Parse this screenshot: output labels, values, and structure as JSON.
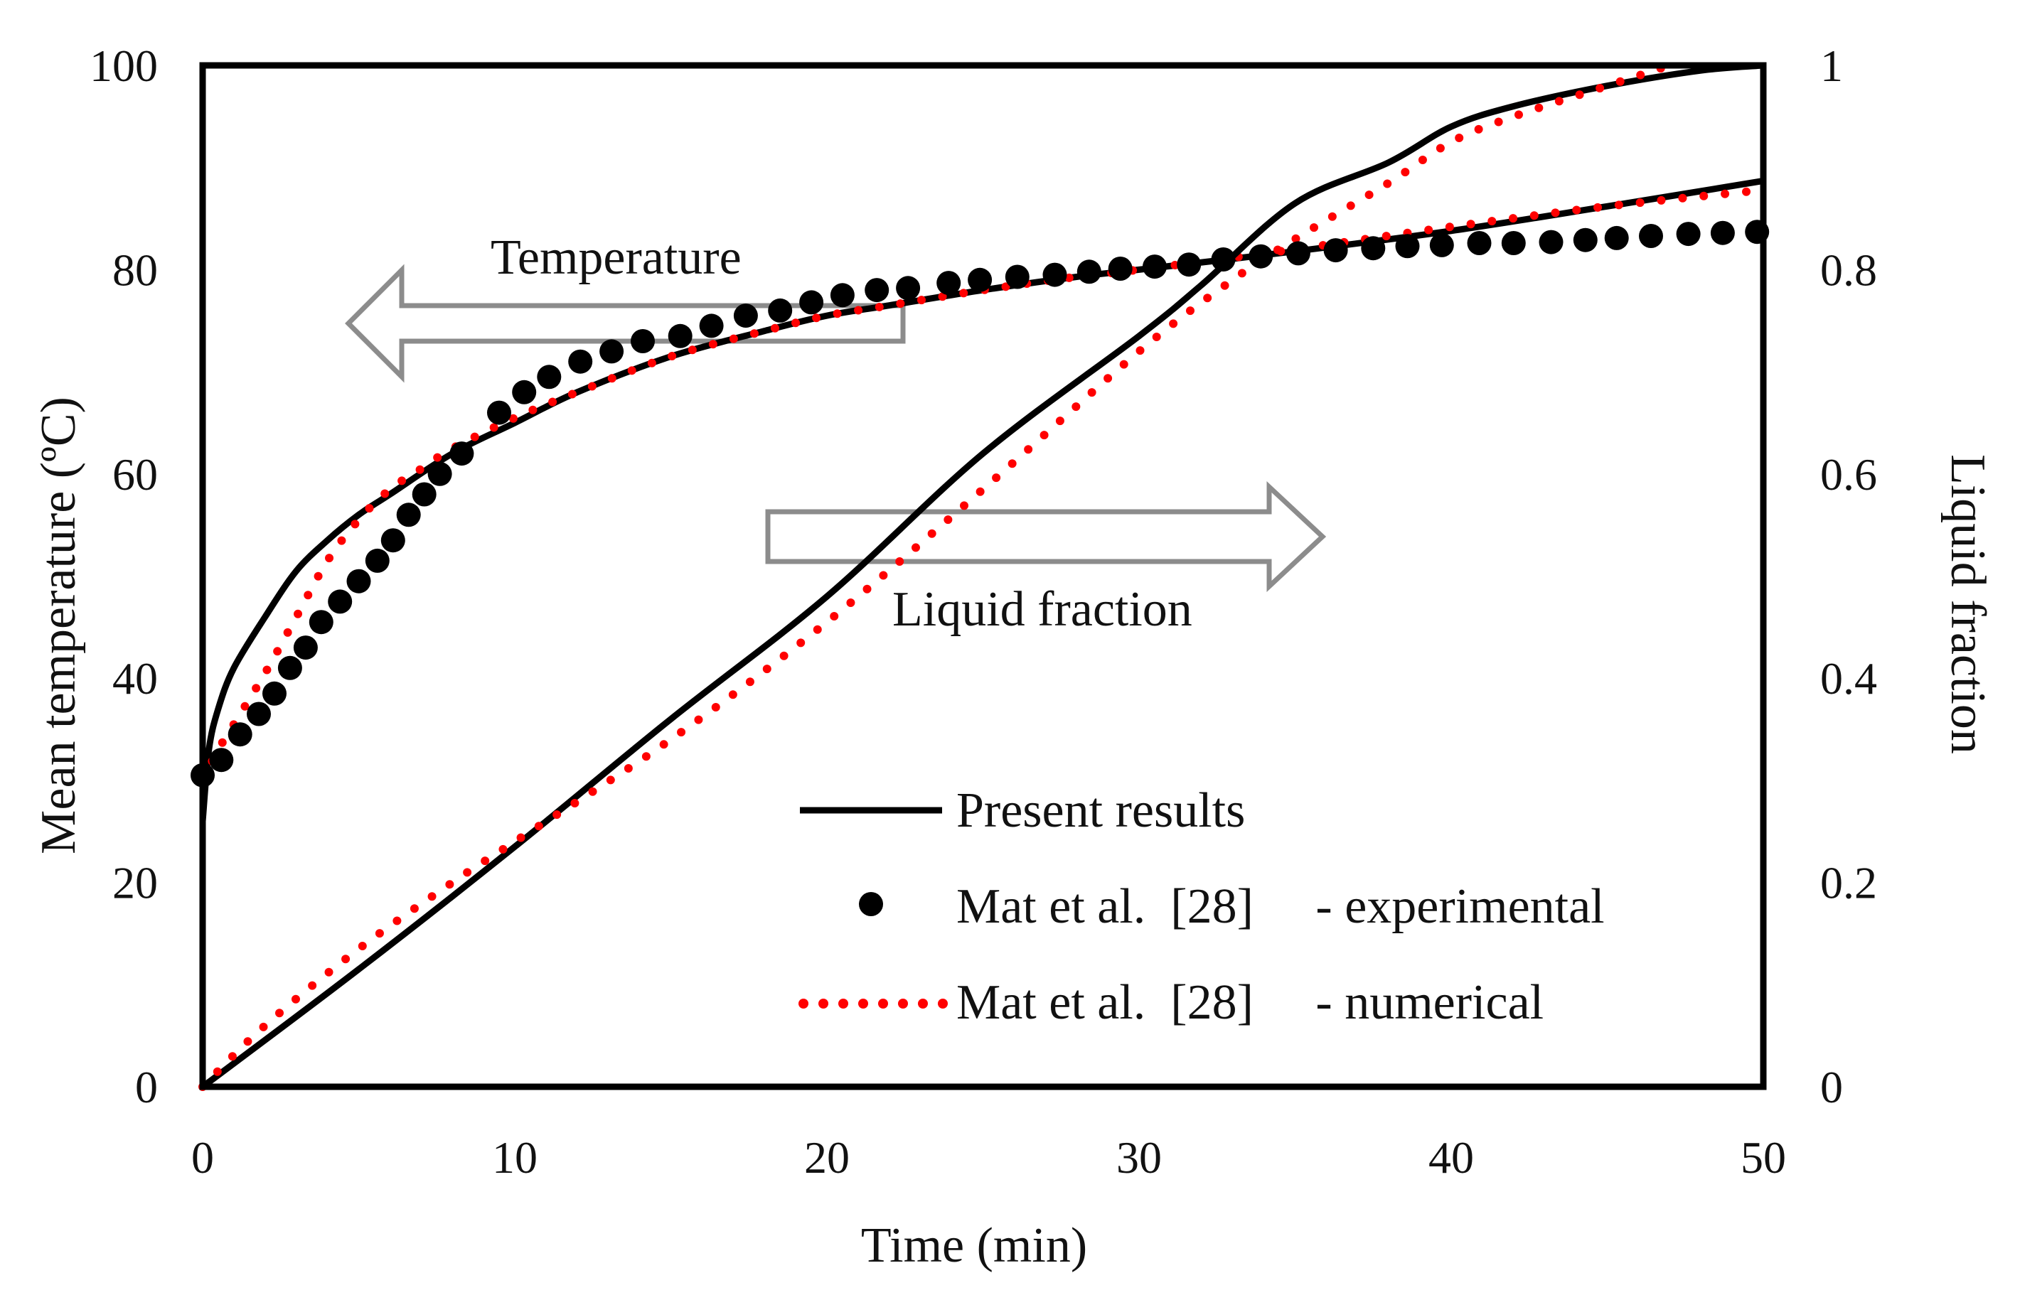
{
  "chart_data": {
    "type": "line",
    "xlabel": "Time (min)",
    "ylabel_left": "Mean temperature (ºC)",
    "ylabel_right": "Liquid fraction",
    "xlim": [
      0,
      50
    ],
    "ylim_left": [
      0,
      100
    ],
    "ylim_right": [
      0,
      1
    ],
    "x_ticks": [
      "0",
      "10",
      "20",
      "30",
      "40",
      "50"
    ],
    "y_left_ticks": [
      "0",
      "20",
      "40",
      "60",
      "80",
      "100"
    ],
    "y_right_ticks": [
      "0",
      "0.2",
      "0.4",
      "0.6",
      "0.8",
      "1"
    ],
    "grid": false,
    "legend_position": "bottom-right inside",
    "legend": [
      {
        "label": "Present results",
        "style": "solid",
        "color": "#000000"
      },
      {
        "label": "Mat et al.  [28]     - experimental",
        "style": "dots",
        "color": "#000000"
      },
      {
        "label": "Mat et al.  [28]     - numerical",
        "style": "dotted",
        "color": "#ff0000"
      }
    ],
    "annotations": [
      {
        "text": "Temperature",
        "arrow": "left"
      },
      {
        "text": "Liquid fraction",
        "arrow": "right"
      }
    ],
    "series": [
      {
        "group": "Mean temperature",
        "axis": "left",
        "source": "Present results",
        "style": "solid",
        "color": "#000000",
        "x": [
          0,
          0.2,
          0.5,
          1,
          2,
          3,
          4,
          5,
          6,
          8,
          10,
          12,
          15,
          18,
          20,
          22,
          25,
          28,
          30,
          35,
          40,
          45,
          50
        ],
        "y": [
          26,
          33,
          37,
          41,
          46,
          50.5,
          53.5,
          56,
          58,
          62,
          65,
          68,
          71.5,
          74,
          75.5,
          76.5,
          78,
          79.3,
          80,
          81.8,
          83.8,
          86.2,
          88.7
        ]
      },
      {
        "group": "Mean temperature",
        "axis": "left",
        "source": "Mat et al. [28] - numerical",
        "style": "dotted",
        "color": "#ff0000",
        "x": [
          0,
          0.5,
          1,
          2,
          3,
          4,
          5,
          6,
          7,
          8,
          10,
          12,
          15,
          18,
          20,
          22,
          25,
          28,
          30,
          35,
          40,
          45,
          50
        ],
        "y": [
          30,
          33,
          35.5,
          40.5,
          46,
          51.5,
          55.5,
          58.5,
          60.5,
          62.5,
          65.5,
          68,
          71.5,
          74,
          75.5,
          76.5,
          78,
          79.3,
          80,
          82,
          84.2,
          86.2,
          87.8
        ]
      },
      {
        "group": "Mean temperature",
        "axis": "left",
        "source": "Mat et al. [28] - experimental",
        "style": "markers",
        "color": "#000000",
        "x": [
          0,
          0.6,
          1.2,
          1.8,
          2.3,
          2.8,
          3.3,
          3.8,
          4.4,
          5,
          5.6,
          6.1,
          6.6,
          7.1,
          7.6,
          8.3,
          9.5,
          10.3,
          11.1,
          12.1,
          13.1,
          14.1,
          15.3,
          16.3,
          17.4,
          18.5,
          19.5,
          20.5,
          21.6,
          22.6,
          23.9,
          24.9,
          26.1,
          27.3,
          28.4,
          29.4,
          30.5,
          31.6,
          32.7,
          33.9,
          35.1,
          36.3,
          37.5,
          38.6,
          39.7,
          40.9,
          42,
          43.2,
          44.3,
          45.3,
          46.4,
          47.6,
          48.7,
          49.8
        ],
        "y": [
          30.5,
          32,
          34.5,
          36.5,
          38.5,
          41,
          43,
          45.5,
          47.5,
          49.5,
          51.5,
          53.5,
          56,
          58,
          60,
          62,
          66,
          68,
          69.5,
          71,
          72,
          73,
          73.5,
          74.5,
          75.5,
          76,
          76.8,
          77.5,
          78,
          78.2,
          78.7,
          79,
          79.3,
          79.5,
          79.8,
          80.1,
          80.3,
          80.5,
          81,
          81.3,
          81.6,
          81.9,
          82.1,
          82.3,
          82.4,
          82.6,
          82.6,
          82.7,
          82.9,
          83.1,
          83.3,
          83.5,
          83.6,
          83.7
        ]
      },
      {
        "group": "Liquid fraction",
        "axis": "right",
        "source": "Present results",
        "style": "solid",
        "color": "#000000",
        "x": [
          0,
          5,
          10,
          15,
          20,
          25,
          30,
          32,
          35,
          38,
          40,
          42,
          45,
          48,
          50
        ],
        "y": [
          0,
          0.115,
          0.235,
          0.36,
          0.48,
          0.62,
          0.735,
          0.785,
          0.865,
          0.905,
          0.94,
          0.96,
          0.98,
          0.995,
          1.0
        ]
      },
      {
        "group": "Liquid fraction",
        "axis": "right",
        "source": "Mat et al. [28] - numerical",
        "style": "dotted",
        "color": "#ff0000",
        "x": [
          0,
          2,
          5,
          8,
          10,
          15,
          20,
          25,
          30,
          33,
          35,
          38,
          40,
          42,
          45,
          47
        ],
        "y": [
          0,
          0.06,
          0.135,
          0.2,
          0.24,
          0.34,
          0.455,
          0.585,
          0.72,
          0.79,
          0.83,
          0.885,
          0.925,
          0.95,
          0.98,
          1.0
        ]
      }
    ]
  }
}
